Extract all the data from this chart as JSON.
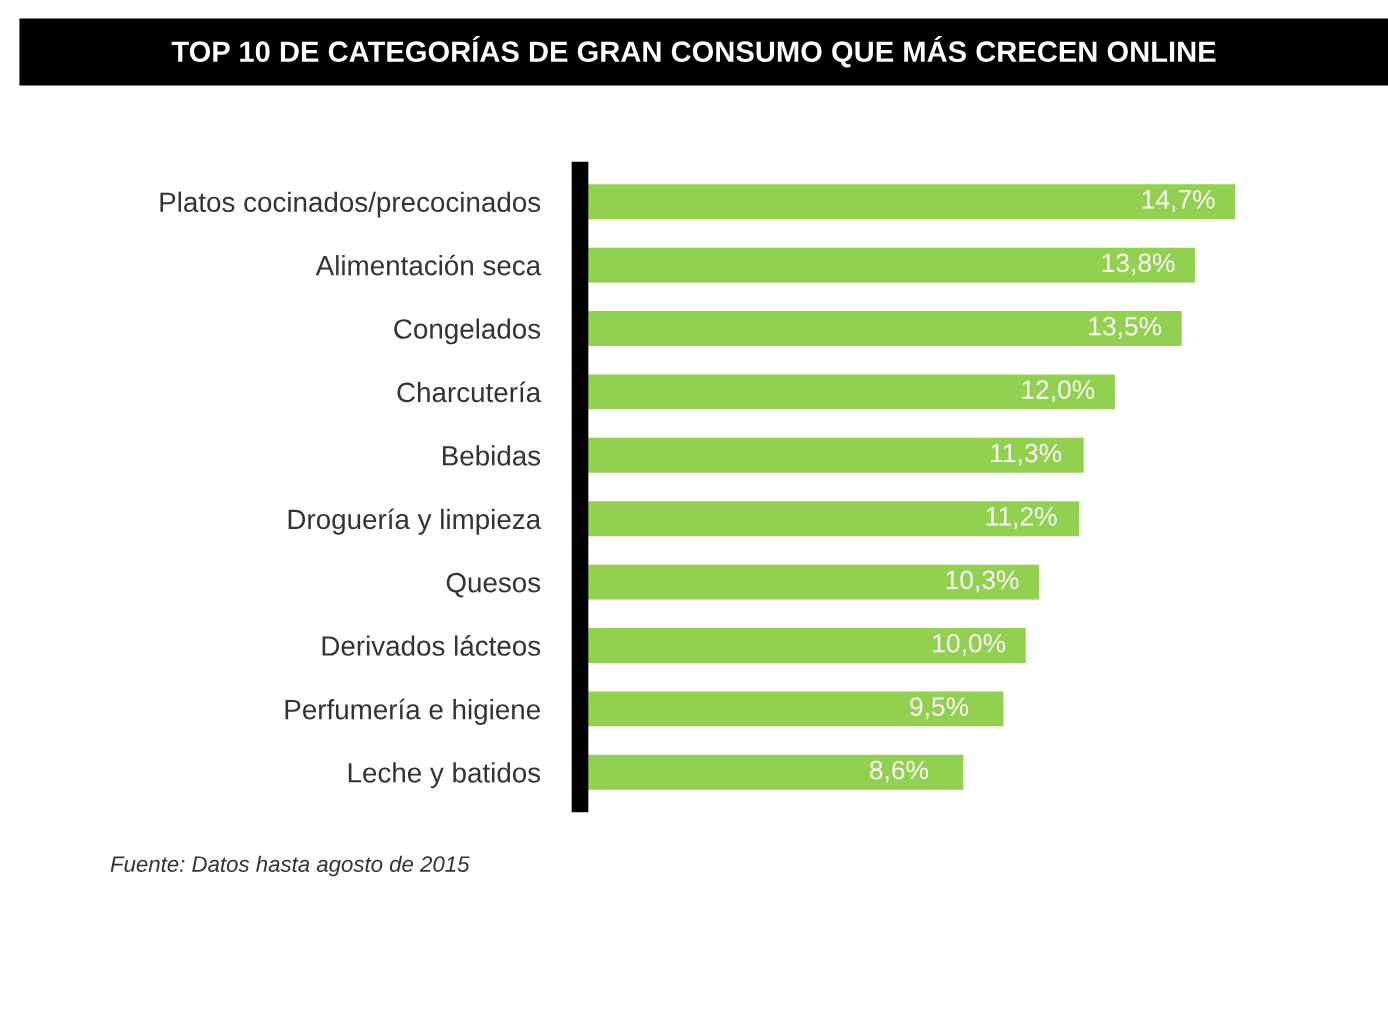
{
  "chart_data": {
    "type": "bar",
    "orientation": "horizontal",
    "relative": false,
    "title": "TOP 10 DE CATEGORÍAS DE GRAN CONSUMO QUE MÁS CRECEN ONLINE",
    "categories": [
      "Platos cocinados/precocinados",
      "Alimentación seca",
      "Congelados",
      "Charcutería",
      "Bebidas",
      "Droguería y limpieza",
      "Quesos",
      "Derivados lácteos",
      "Perfumería e higiene",
      "Leche y batidos"
    ],
    "values": [
      14.7,
      13.8,
      13.5,
      12.0,
      11.3,
      11.2,
      10.3,
      10.0,
      9.5,
      8.6
    ],
    "value_labels": [
      "14,7%",
      "13,8%",
      "13,5%",
      "12,0%",
      "11,3%",
      "11,2%",
      "10,3%",
      "10,0%",
      "9,5%",
      "8,6%"
    ],
    "color": "#92d050",
    "grid": false,
    "legend": false,
    "annotations": [
      "Fuente: Datos hasta agosto de 2015"
    ]
  }
}
